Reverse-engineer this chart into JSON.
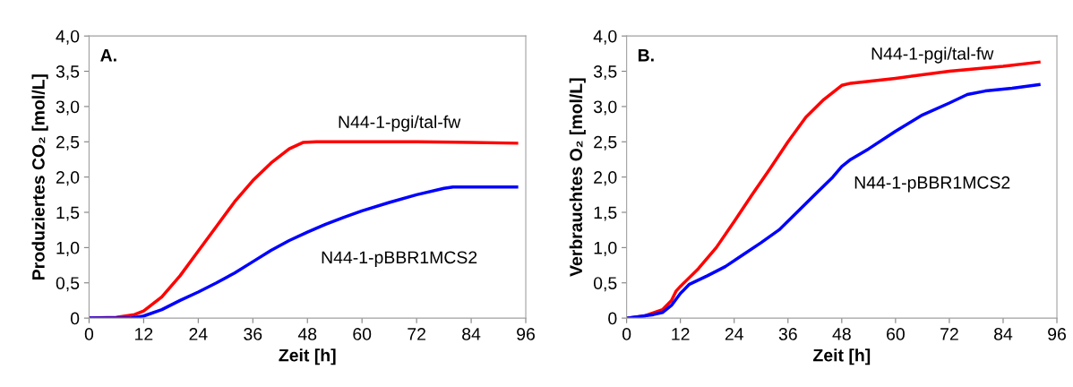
{
  "chart_data": [
    {
      "type": "line",
      "title": "A.",
      "xlabel": "Zeit [h]",
      "ylabel": "Produziertes CO₂ [mol/L]",
      "xlim": [
        0,
        96
      ],
      "xticks": [
        0,
        12,
        24,
        36,
        48,
        60,
        72,
        84,
        96
      ],
      "ylim": [
        0,
        4
      ],
      "yticks": [
        {
          "value": 0,
          "label": "0"
        },
        {
          "value": 0.5,
          "label": "0,5"
        },
        {
          "value": 1,
          "label": "1,0"
        },
        {
          "value": 1.5,
          "label": "1,5"
        },
        {
          "value": 2,
          "label": "2,0"
        },
        {
          "value": 2.5,
          "label": "2,5"
        },
        {
          "value": 3,
          "label": "3,0"
        },
        {
          "value": 3.5,
          "label": "3,5"
        },
        {
          "value": 4,
          "label": "4,0"
        }
      ],
      "grid": false,
      "legend": false,
      "marker": "none",
      "line_style": "solid",
      "series": [
        {
          "name": "N44-1-pgi/tal-fw",
          "color": "#ff0000",
          "x": [
            0,
            6,
            10,
            12,
            16,
            20,
            24,
            28,
            32,
            36,
            40,
            44,
            47,
            50,
            60,
            72,
            84,
            94
          ],
          "values": [
            0,
            0.01,
            0.05,
            0.1,
            0.3,
            0.6,
            0.95,
            1.3,
            1.65,
            1.95,
            2.2,
            2.4,
            2.49,
            2.5,
            2.5,
            2.5,
            2.49,
            2.48
          ]
        },
        {
          "name": "N44-1-pBBR1MCS2",
          "color": "#0000ff",
          "x": [
            0,
            9,
            12,
            16,
            20,
            24,
            28,
            32,
            36,
            40,
            44,
            48,
            52,
            56,
            60,
            66,
            72,
            78,
            80,
            86,
            94
          ],
          "values": [
            0,
            0,
            0.03,
            0.12,
            0.25,
            0.37,
            0.5,
            0.64,
            0.8,
            0.96,
            1.1,
            1.22,
            1.33,
            1.43,
            1.52,
            1.64,
            1.75,
            1.84,
            1.86,
            1.86,
            1.86
          ]
        }
      ]
    },
    {
      "type": "line",
      "title": "B.",
      "xlabel": "Zeit [h]",
      "ylabel": "Verbrauchtes O₂ [mol/L]",
      "xlim": [
        0,
        96
      ],
      "xticks": [
        0,
        12,
        24,
        36,
        48,
        60,
        72,
        84,
        96
      ],
      "ylim": [
        0,
        4
      ],
      "yticks": [
        {
          "value": 0,
          "label": "0"
        },
        {
          "value": 0.5,
          "label": "0,5"
        },
        {
          "value": 1,
          "label": "1,0"
        },
        {
          "value": 1.5,
          "label": "1,5"
        },
        {
          "value": 2,
          "label": "2,0"
        },
        {
          "value": 2.5,
          "label": "2,5"
        },
        {
          "value": 3,
          "label": "3,0"
        },
        {
          "value": 3.5,
          "label": "3,5"
        },
        {
          "value": 4,
          "label": "4,0"
        }
      ],
      "grid": false,
      "legend": false,
      "marker": "none",
      "line_style": "solid",
      "series": [
        {
          "name": "N44-1-pgi/tal-fw",
          "color": "#ff0000",
          "x": [
            0,
            4,
            8,
            10,
            11,
            12,
            16,
            20,
            24,
            28,
            32,
            36,
            40,
            44,
            48,
            50,
            60,
            72,
            84,
            92
          ],
          "values": [
            0,
            0.03,
            0.12,
            0.25,
            0.38,
            0.45,
            0.7,
            1.0,
            1.37,
            1.75,
            2.12,
            2.5,
            2.85,
            3.1,
            3.3,
            3.33,
            3.4,
            3.5,
            3.57,
            3.63
          ]
        },
        {
          "name": "N44-1-pBBR1MCS2",
          "color": "#0000ff",
          "x": [
            0,
            6,
            8,
            10,
            12,
            14,
            18,
            22,
            26,
            30,
            34,
            38,
            42,
            46,
            48,
            50,
            54,
            60,
            66,
            72,
            76,
            80,
            86,
            92
          ],
          "values": [
            0,
            0.05,
            0.08,
            0.18,
            0.35,
            0.48,
            0.6,
            0.73,
            0.9,
            1.07,
            1.25,
            1.5,
            1.75,
            2.0,
            2.15,
            2.25,
            2.4,
            2.65,
            2.88,
            3.05,
            3.17,
            3.22,
            3.26,
            3.31
          ]
        }
      ]
    }
  ]
}
